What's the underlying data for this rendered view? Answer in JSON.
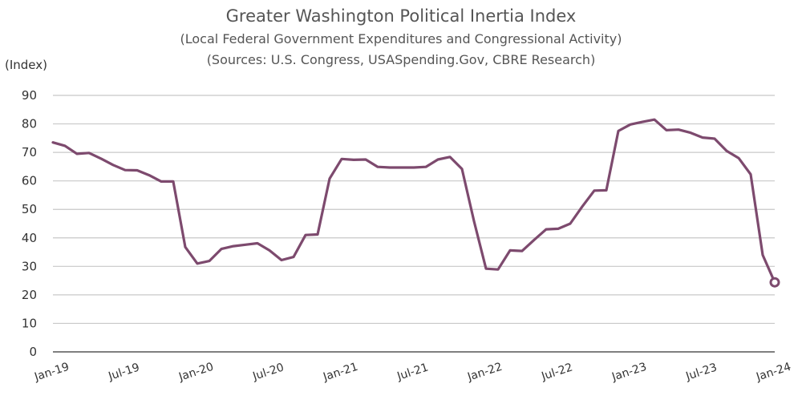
{
  "chart_data": {
    "type": "line",
    "title": "Greater Washington Political Inertia Index",
    "subtitle": "(Local Federal Government Expenditures and Congressional Activity)",
    "sources": "(Sources: U.S. Congress, USASpending.Gov, CBRE Research)",
    "ylabel": "(Index)",
    "xlabel": "",
    "ylim": [
      0,
      90
    ],
    "yticks": [
      0,
      10,
      20,
      30,
      40,
      50,
      60,
      70,
      80,
      90
    ],
    "grid": true,
    "x_tick_labels": [
      "Jan-19",
      "Jul-19",
      "Jan-20",
      "Jul-20",
      "Jan-21",
      "Jul-21",
      "Jan-22",
      "Jul-22",
      "Jan-23",
      "Jul-23",
      "Jan-24"
    ],
    "x_tick_month_index": [
      0,
      6,
      12,
      18,
      24,
      30,
      36,
      42,
      48,
      54,
      60
    ],
    "colors": {
      "line": "#7d4a6e",
      "grid": "#c8c8c8",
      "axis": "#333333"
    },
    "series": [
      {
        "name": "Political Inertia Index",
        "x_month_index": [
          0,
          1,
          2,
          3,
          4,
          5,
          6,
          7,
          8,
          9,
          10,
          11,
          12,
          13,
          14,
          15,
          16,
          17,
          18,
          19,
          20,
          21,
          22,
          23,
          24,
          25,
          26,
          27,
          28,
          29,
          30,
          31,
          32,
          33,
          34,
          35,
          36,
          37,
          38,
          39,
          40,
          41,
          42,
          43,
          44,
          45,
          46,
          47,
          48,
          49,
          50,
          51,
          52,
          53,
          54,
          55,
          56,
          57,
          58,
          59,
          60
        ],
        "values": [
          73.5,
          72.3,
          69.5,
          69.8,
          67.8,
          65.6,
          63.8,
          63.7,
          62.0,
          59.8,
          59.8,
          36.8,
          31.0,
          31.9,
          36.1,
          37.1,
          37.6,
          38.1,
          35.6,
          32.2,
          33.3,
          41.0,
          41.2,
          60.8,
          67.7,
          67.4,
          67.5,
          64.9,
          64.7,
          64.7,
          64.7,
          64.9,
          67.5,
          68.4,
          64.2,
          45.9,
          29.2,
          28.9,
          35.6,
          35.4,
          39.3,
          43.0,
          43.2,
          45.0,
          51.0,
          56.6,
          56.7,
          77.5,
          79.8,
          80.7,
          81.5,
          77.8,
          78.0,
          76.9,
          75.2,
          74.8,
          70.5,
          68.0,
          62.3,
          34.0,
          24.4
        ],
        "last_point_marker": "hollow-circle"
      }
    ]
  }
}
